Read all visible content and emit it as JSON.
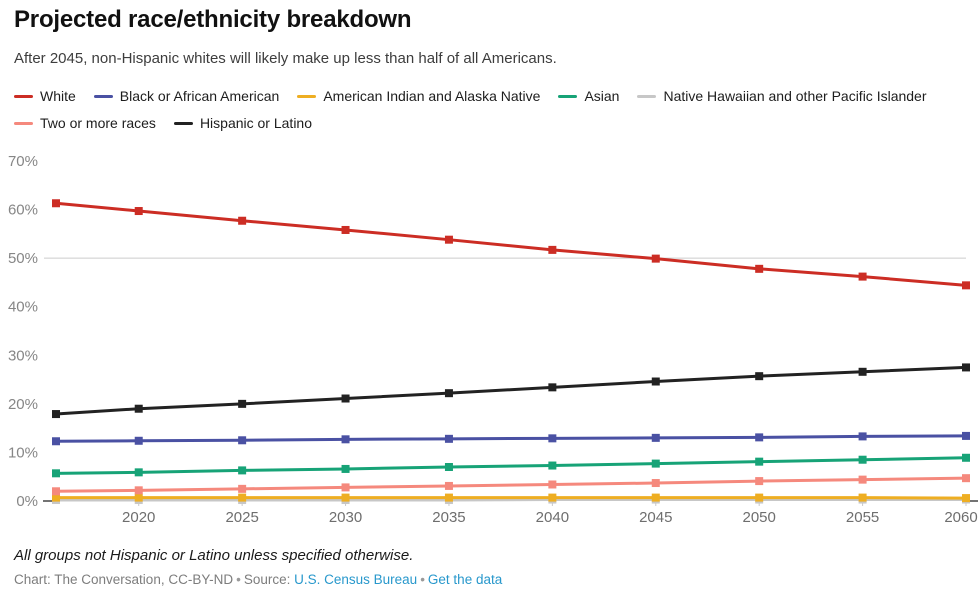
{
  "header": {
    "title": "Projected race/ethnicity breakdown",
    "subtitle": "After 2045, non-Hispanic whites will likely make up less than half of all Americans."
  },
  "chart_data": {
    "type": "line",
    "title": "Projected race/ethnicity breakdown",
    "subtitle": "After 2045, non-Hispanic whites will likely make up less than half of all Americans.",
    "x": [
      2016,
      2020,
      2025,
      2030,
      2035,
      2040,
      2045,
      2050,
      2055,
      2060
    ],
    "series": [
      {
        "name": "White",
        "color": "#cc2d24",
        "values": [
          61.3,
          59.7,
          57.7,
          55.8,
          53.8,
          51.7,
          49.9,
          47.8,
          46.2,
          44.4
        ]
      },
      {
        "name": "Black or African American",
        "color": "#4a51a3",
        "values": [
          12.3,
          12.4,
          12.5,
          12.7,
          12.8,
          12.9,
          13.0,
          13.1,
          13.3,
          13.4
        ]
      },
      {
        "name": "American Indian and Alaska Native",
        "color": "#eeae22",
        "values": [
          0.7,
          0.7,
          0.7,
          0.7,
          0.7,
          0.7,
          0.7,
          0.7,
          0.7,
          0.6
        ]
      },
      {
        "name": "Asian",
        "color": "#17a377",
        "values": [
          5.7,
          5.9,
          6.3,
          6.6,
          7.0,
          7.3,
          7.7,
          8.1,
          8.5,
          8.9
        ]
      },
      {
        "name": "Native Hawaiian and other Pacific Islander",
        "color": "#c7c7c7",
        "values": [
          0.2,
          0.2,
          0.2,
          0.2,
          0.2,
          0.3,
          0.3,
          0.3,
          0.3,
          0.3
        ]
      },
      {
        "name": "Two or more races",
        "color": "#f5897d",
        "values": [
          2.0,
          2.2,
          2.5,
          2.8,
          3.1,
          3.4,
          3.7,
          4.1,
          4.4,
          4.7
        ]
      },
      {
        "name": "Hispanic or Latino",
        "color": "#222222",
        "values": [
          17.9,
          19.0,
          20.0,
          21.1,
          22.2,
          23.4,
          24.6,
          25.7,
          26.6,
          27.5
        ]
      }
    ],
    "xticks": [
      2020,
      2025,
      2030,
      2035,
      2040,
      2045,
      2050,
      2055,
      2060
    ],
    "yticks": [
      0,
      10,
      20,
      30,
      40,
      50,
      60,
      70
    ],
    "ytick_suffix": "%",
    "ylim": [
      0,
      70
    ],
    "xlim": [
      2016,
      2060
    ],
    "gridlines_at": [
      50
    ],
    "legend_position": "top",
    "marker": "square",
    "xlabel": "",
    "ylabel": ""
  },
  "footer": {
    "note": "All groups not Hispanic or Latino unless specified otherwise.",
    "credit_text": "Chart: The Conversation, CC-BY-ND",
    "sep1": "•",
    "source_label": "Source:",
    "source_link": "U.S. Census Bureau",
    "sep2": "•",
    "data_link": "Get the data"
  },
  "colors": {
    "gridline": "#cccccc",
    "axis_tick": "#c9c9c9",
    "zero_tick": "#444444",
    "y_label": "#868686",
    "x_label": "#6e6e6e",
    "link": "#2898cc"
  }
}
